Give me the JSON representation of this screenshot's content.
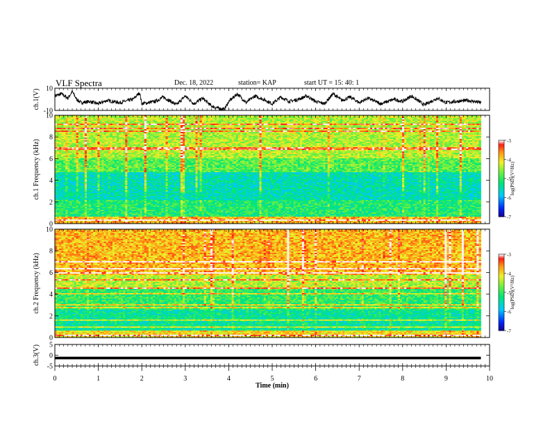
{
  "header": {
    "title": "VLF Spectra",
    "date": "Dec. 18, 2022",
    "station": "station= KAP",
    "start": "start  UT =   15: 40: 1"
  },
  "chart_data": [
    {
      "type": "line",
      "name": "ch1-waveform",
      "ylabel": "ch.1(V)",
      "ylim": [
        -10,
        10
      ],
      "yticks": [
        "10",
        "-10"
      ],
      "x": [
        0.0,
        0.15,
        0.3,
        0.4,
        0.5,
        0.6,
        0.8,
        1.0,
        1.2,
        1.5,
        1.8,
        1.95,
        2.0,
        2.3,
        2.5,
        2.8,
        3.0,
        3.2,
        3.4,
        3.6,
        3.75,
        3.9,
        4.0,
        4.2,
        4.4,
        4.6,
        4.8,
        5.0,
        5.2,
        5.4,
        5.6,
        5.8,
        6.0,
        6.2,
        6.4,
        6.6,
        6.8,
        7.0,
        7.2,
        7.5,
        7.8,
        8.0,
        8.2,
        8.5,
        8.8,
        9.0,
        9.2,
        9.5,
        9.8
      ],
      "y": [
        3,
        5,
        1,
        7,
        0,
        -3,
        -2,
        -4,
        -1,
        -3,
        0,
        6,
        -4,
        -2,
        2,
        -5,
        3,
        -4,
        1,
        -6,
        -8,
        -9,
        -2,
        5,
        -3,
        3,
        0,
        -4,
        2,
        -2,
        0,
        3,
        -2,
        -4,
        5,
        -1,
        2,
        -3,
        1,
        -4,
        0,
        -2,
        3,
        -5,
        1,
        -3,
        -2,
        -1,
        -3
      ]
    },
    {
      "type": "heatmap",
      "name": "ch1-spectrogram",
      "ylabel": "ch.1 Frequency (kHz)",
      "ylim": [
        0,
        10
      ],
      "yticks": [
        "0",
        "2",
        "4",
        "6",
        "8",
        "10"
      ],
      "colorbar": {
        "label": "log(PSD)(V²/Hz)",
        "range": [
          -7,
          -3
        ],
        "ticks": [
          "-3",
          "-4",
          "-5",
          "-6",
          "-7"
        ]
      }
    },
    {
      "type": "heatmap",
      "name": "ch2-spectrogram",
      "ylabel": "ch.2 Frequency (kHz)",
      "ylim": [
        0,
        10
      ],
      "yticks": [
        "0",
        "2",
        "4",
        "6",
        "8",
        "10"
      ],
      "colorbar": {
        "label": "log(PSD)(V²/Hz)",
        "range": [
          -7,
          -3
        ],
        "ticks": [
          "-3",
          "-4",
          "-5",
          "-6",
          "-7"
        ]
      }
    },
    {
      "type": "line",
      "name": "ch3-waveform",
      "ylabel": "ch.3(V)",
      "ylim": [
        -5,
        5
      ],
      "yticks": [
        "5",
        "0",
        "-5"
      ],
      "x": [
        0,
        9.8
      ],
      "y": [
        -1.3,
        -1.3
      ]
    }
  ],
  "xaxis": {
    "label": "Time  (min)",
    "xlim": [
      0,
      10
    ],
    "ticks": [
      "0",
      "1",
      "2",
      "3",
      "4",
      "5",
      "6",
      "7",
      "8",
      "9",
      "10"
    ]
  }
}
